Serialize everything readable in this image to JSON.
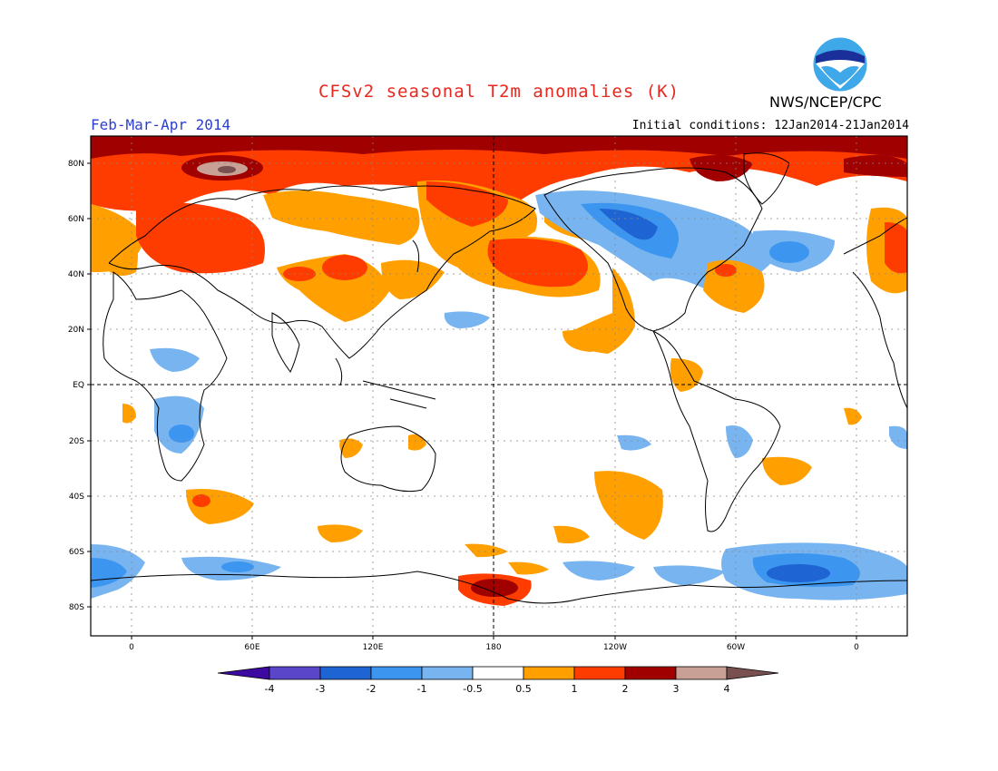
{
  "header": {
    "title": "CFSv2 seasonal T2m anomalies (K)",
    "period": "Feb-Mar-Apr 2014",
    "initial_conditions": "Initial conditions: 12Jan2014-21Jan2014",
    "agency": "NWS/NCEP/CPC",
    "logo_text": "NOAA"
  },
  "axes": {
    "lat_labels": [
      "80N",
      "60N",
      "40N",
      "20N",
      "EQ",
      "20S",
      "40S",
      "60S",
      "80S"
    ],
    "lon_labels": [
      "0",
      "60E",
      "120E",
      "180",
      "120W",
      "60W",
      "0"
    ]
  },
  "colorbar": {
    "labels": [
      "-4",
      "-3",
      "-2",
      "-1",
      "-0.5",
      "0.5",
      "1",
      "2",
      "3",
      "4"
    ],
    "colors": {
      "lt_neg4": "#3c0aa0",
      "neg4_neg3": "#5a46c8",
      "neg3_neg2": "#1e64d2",
      "neg2_neg1": "#3c96f0",
      "neg1_neg05": "#78b4f0",
      "neutral": "#ffffff",
      "p05_1": "#ffa000",
      "p1_2": "#ff3c00",
      "p2_3": "#a00000",
      "p3_4": "#c8a096",
      "gt_4": "#785050"
    }
  },
  "colors": {
    "title": "#e8281e",
    "period": "#2a3fd0"
  }
}
